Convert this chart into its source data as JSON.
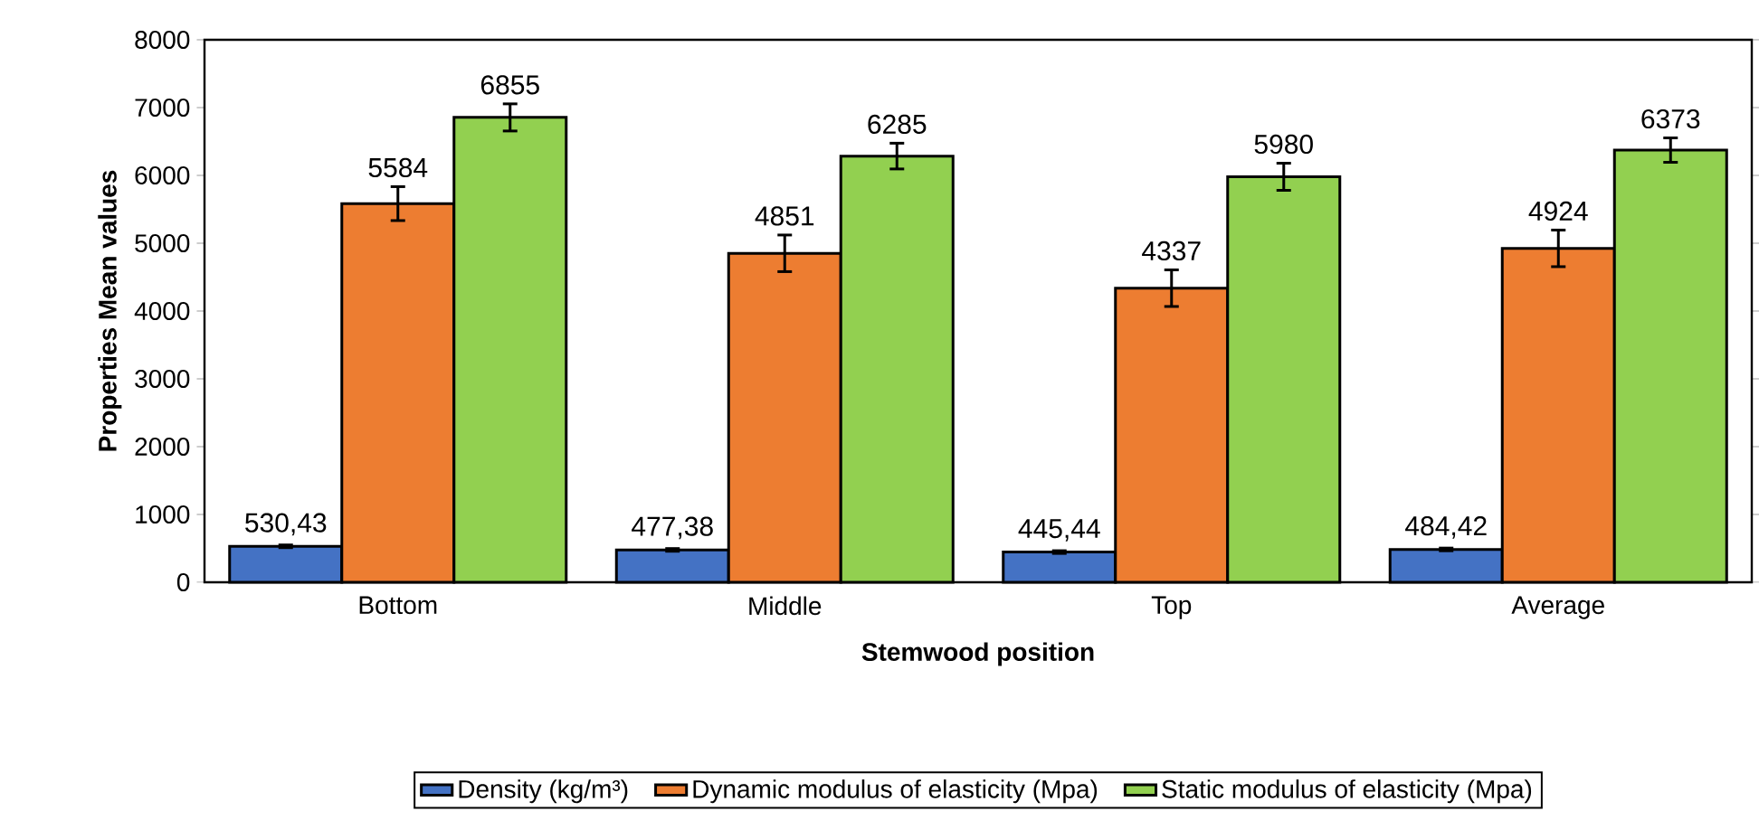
{
  "chart_data": {
    "type": "bar",
    "xlabel": "Stemwood position",
    "ylabel": "Properties Mean values",
    "categories": [
      "Bottom",
      "Middle",
      "Top",
      "Average"
    ],
    "series": [
      {
        "name": "Density (kg/m³)",
        "color": "#4472c4",
        "values": [
          530.43,
          477.38,
          445.44,
          484.42
        ],
        "errors": [
          20,
          20,
          20,
          20
        ],
        "value_labels": [
          "530,43",
          "477,38",
          "445,44",
          "484,42"
        ]
      },
      {
        "name": "Dynamic modulus of elasticity (Mpa)",
        "color": "#ed7d31",
        "values": [
          5584,
          4851,
          4337,
          4924
        ],
        "errors": [
          250,
          270,
          270,
          270
        ],
        "value_labels": [
          "5584",
          "4851",
          "4337",
          "4924"
        ]
      },
      {
        "name": "Static modulus of elasticity (Mpa)",
        "color": "#92d050",
        "values": [
          6855,
          6285,
          5980,
          6373
        ],
        "errors": [
          200,
          190,
          200,
          180
        ],
        "value_labels": [
          "6855",
          "6285",
          "5980",
          "6373"
        ]
      }
    ],
    "ylim": [
      0,
      8000
    ],
    "yticks": [
      0,
      1000,
      2000,
      3000,
      4000,
      5000,
      6000,
      7000,
      8000
    ],
    "legend": "bottom"
  }
}
